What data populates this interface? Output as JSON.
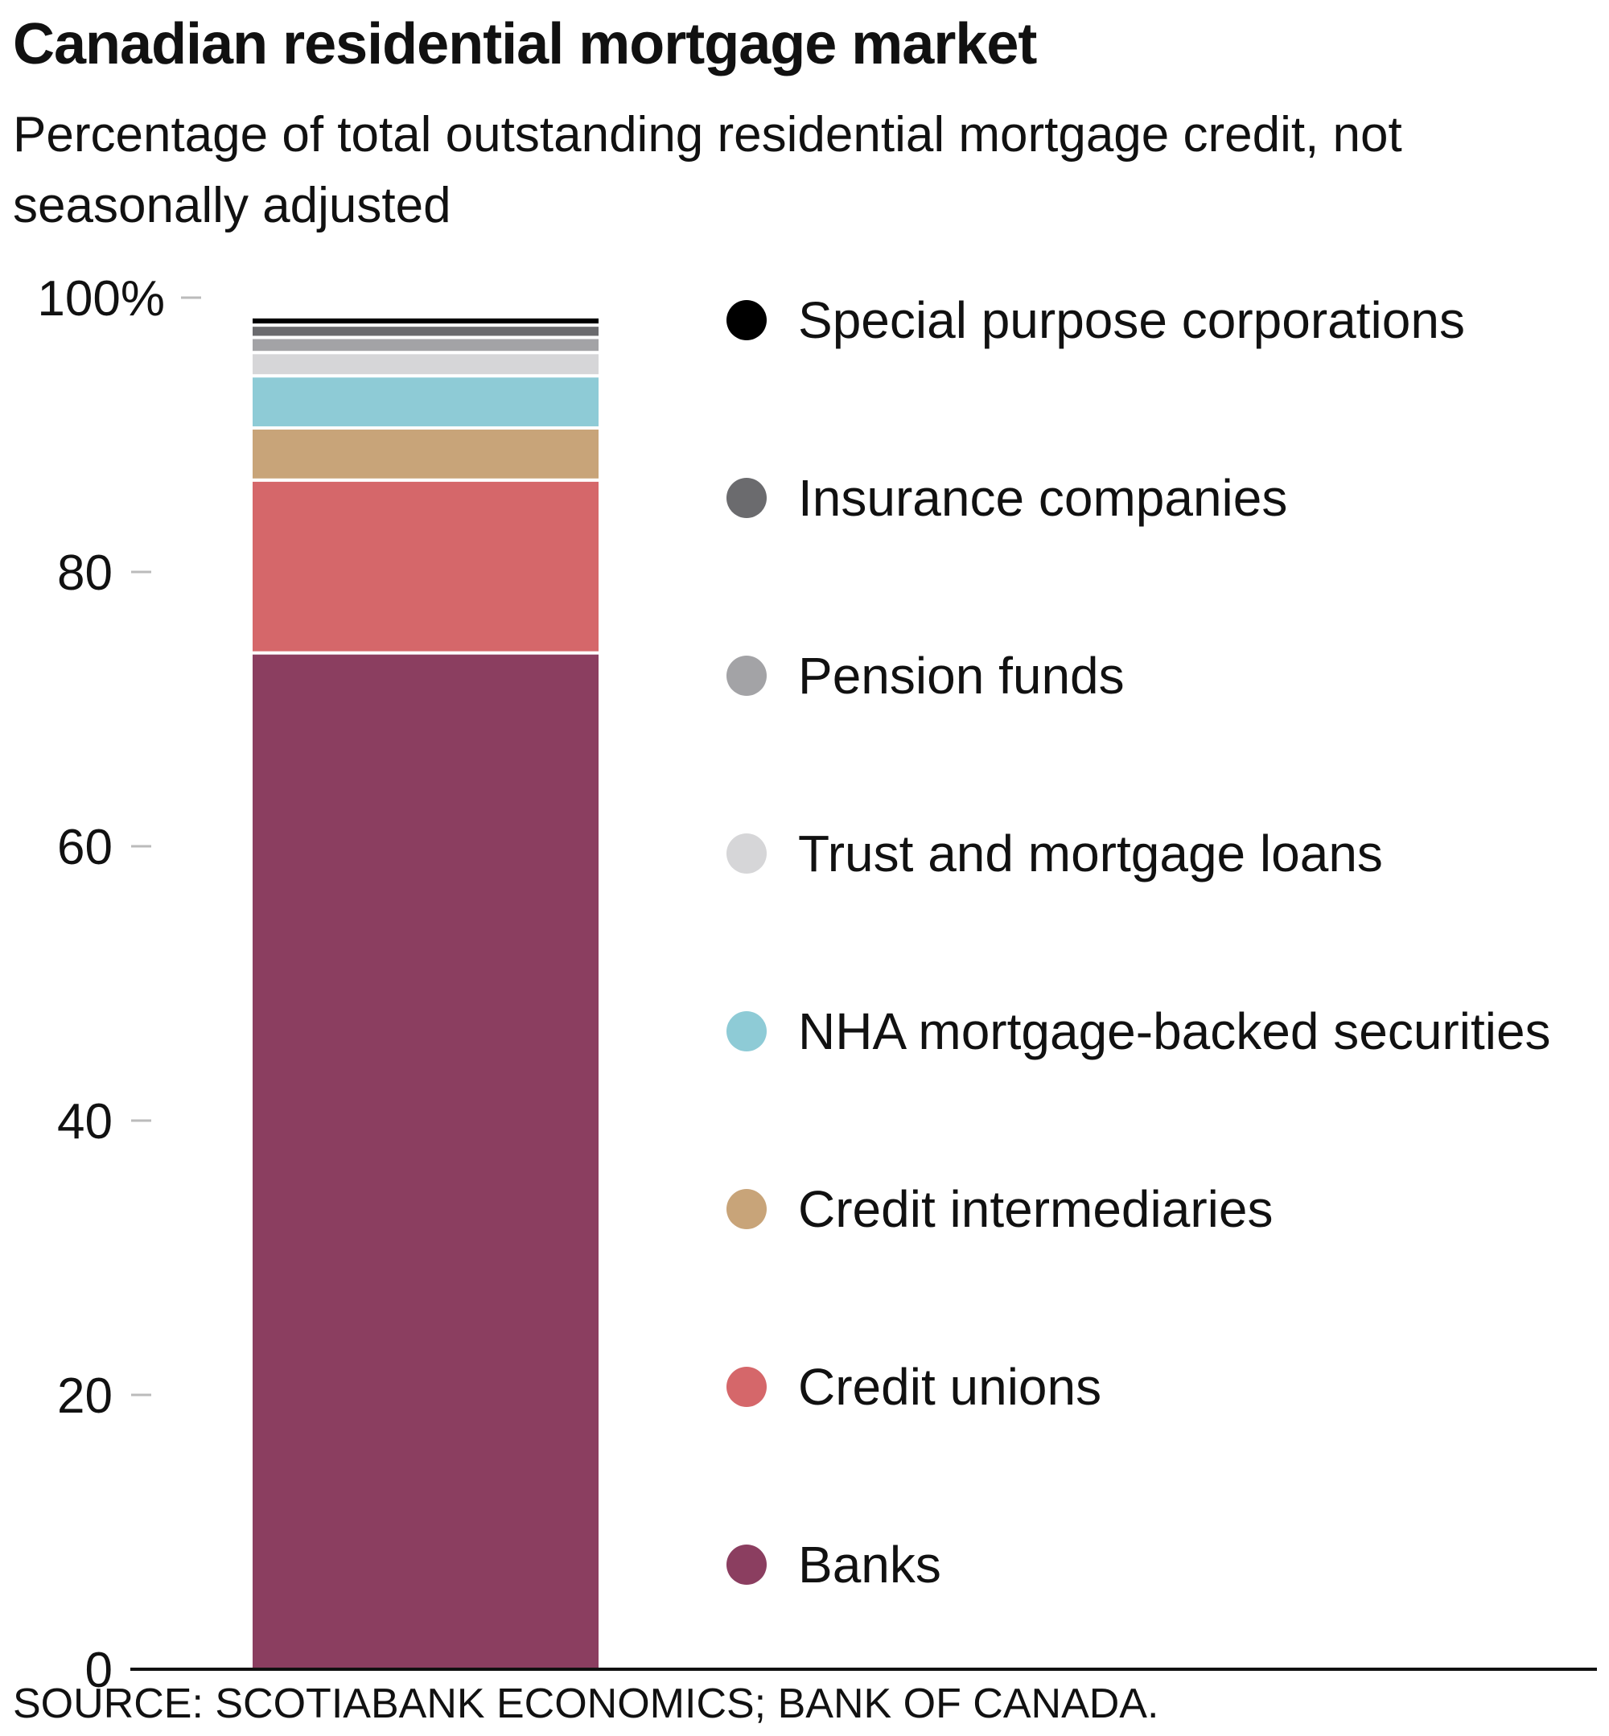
{
  "chart_data": {
    "type": "bar",
    "stacked": true,
    "title": "Canadian residential mortgage market",
    "subtitle": "Percentage of total outstanding residential mortgage credit, not seasonally adjusted",
    "source": "SOURCE: SCOTIABANK ECONOMICS; BANK OF CANADA.",
    "ylim": [
      0,
      100
    ],
    "y_ticks": [
      0,
      20,
      40,
      60,
      80,
      100
    ],
    "y_tick_labels": [
      "0",
      "20",
      "40",
      "60",
      "80",
      "100%"
    ],
    "grid": false,
    "legend_position": "right",
    "series": [
      {
        "name": "Banks",
        "value": 74.1,
        "color": "#8b3e60"
      },
      {
        "name": "Credit unions",
        "value": 12.6,
        "color": "#d5676a"
      },
      {
        "name": "Credit intermediaries",
        "value": 3.8,
        "color": "#c8a479"
      },
      {
        "name": "NHA mortgage-backed securities",
        "value": 3.8,
        "color": "#8ecbd6"
      },
      {
        "name": "Trust and mortgage loans",
        "value": 1.7,
        "color": "#d6d6d8"
      },
      {
        "name": "Pension funds",
        "value": 1.1,
        "color": "#a3a3a6"
      },
      {
        "name": "Insurance companies",
        "value": 0.9,
        "color": "#6b6b6e"
      },
      {
        "name": "Special purpose corporations",
        "value": 0.6,
        "color": "#000000"
      }
    ]
  }
}
